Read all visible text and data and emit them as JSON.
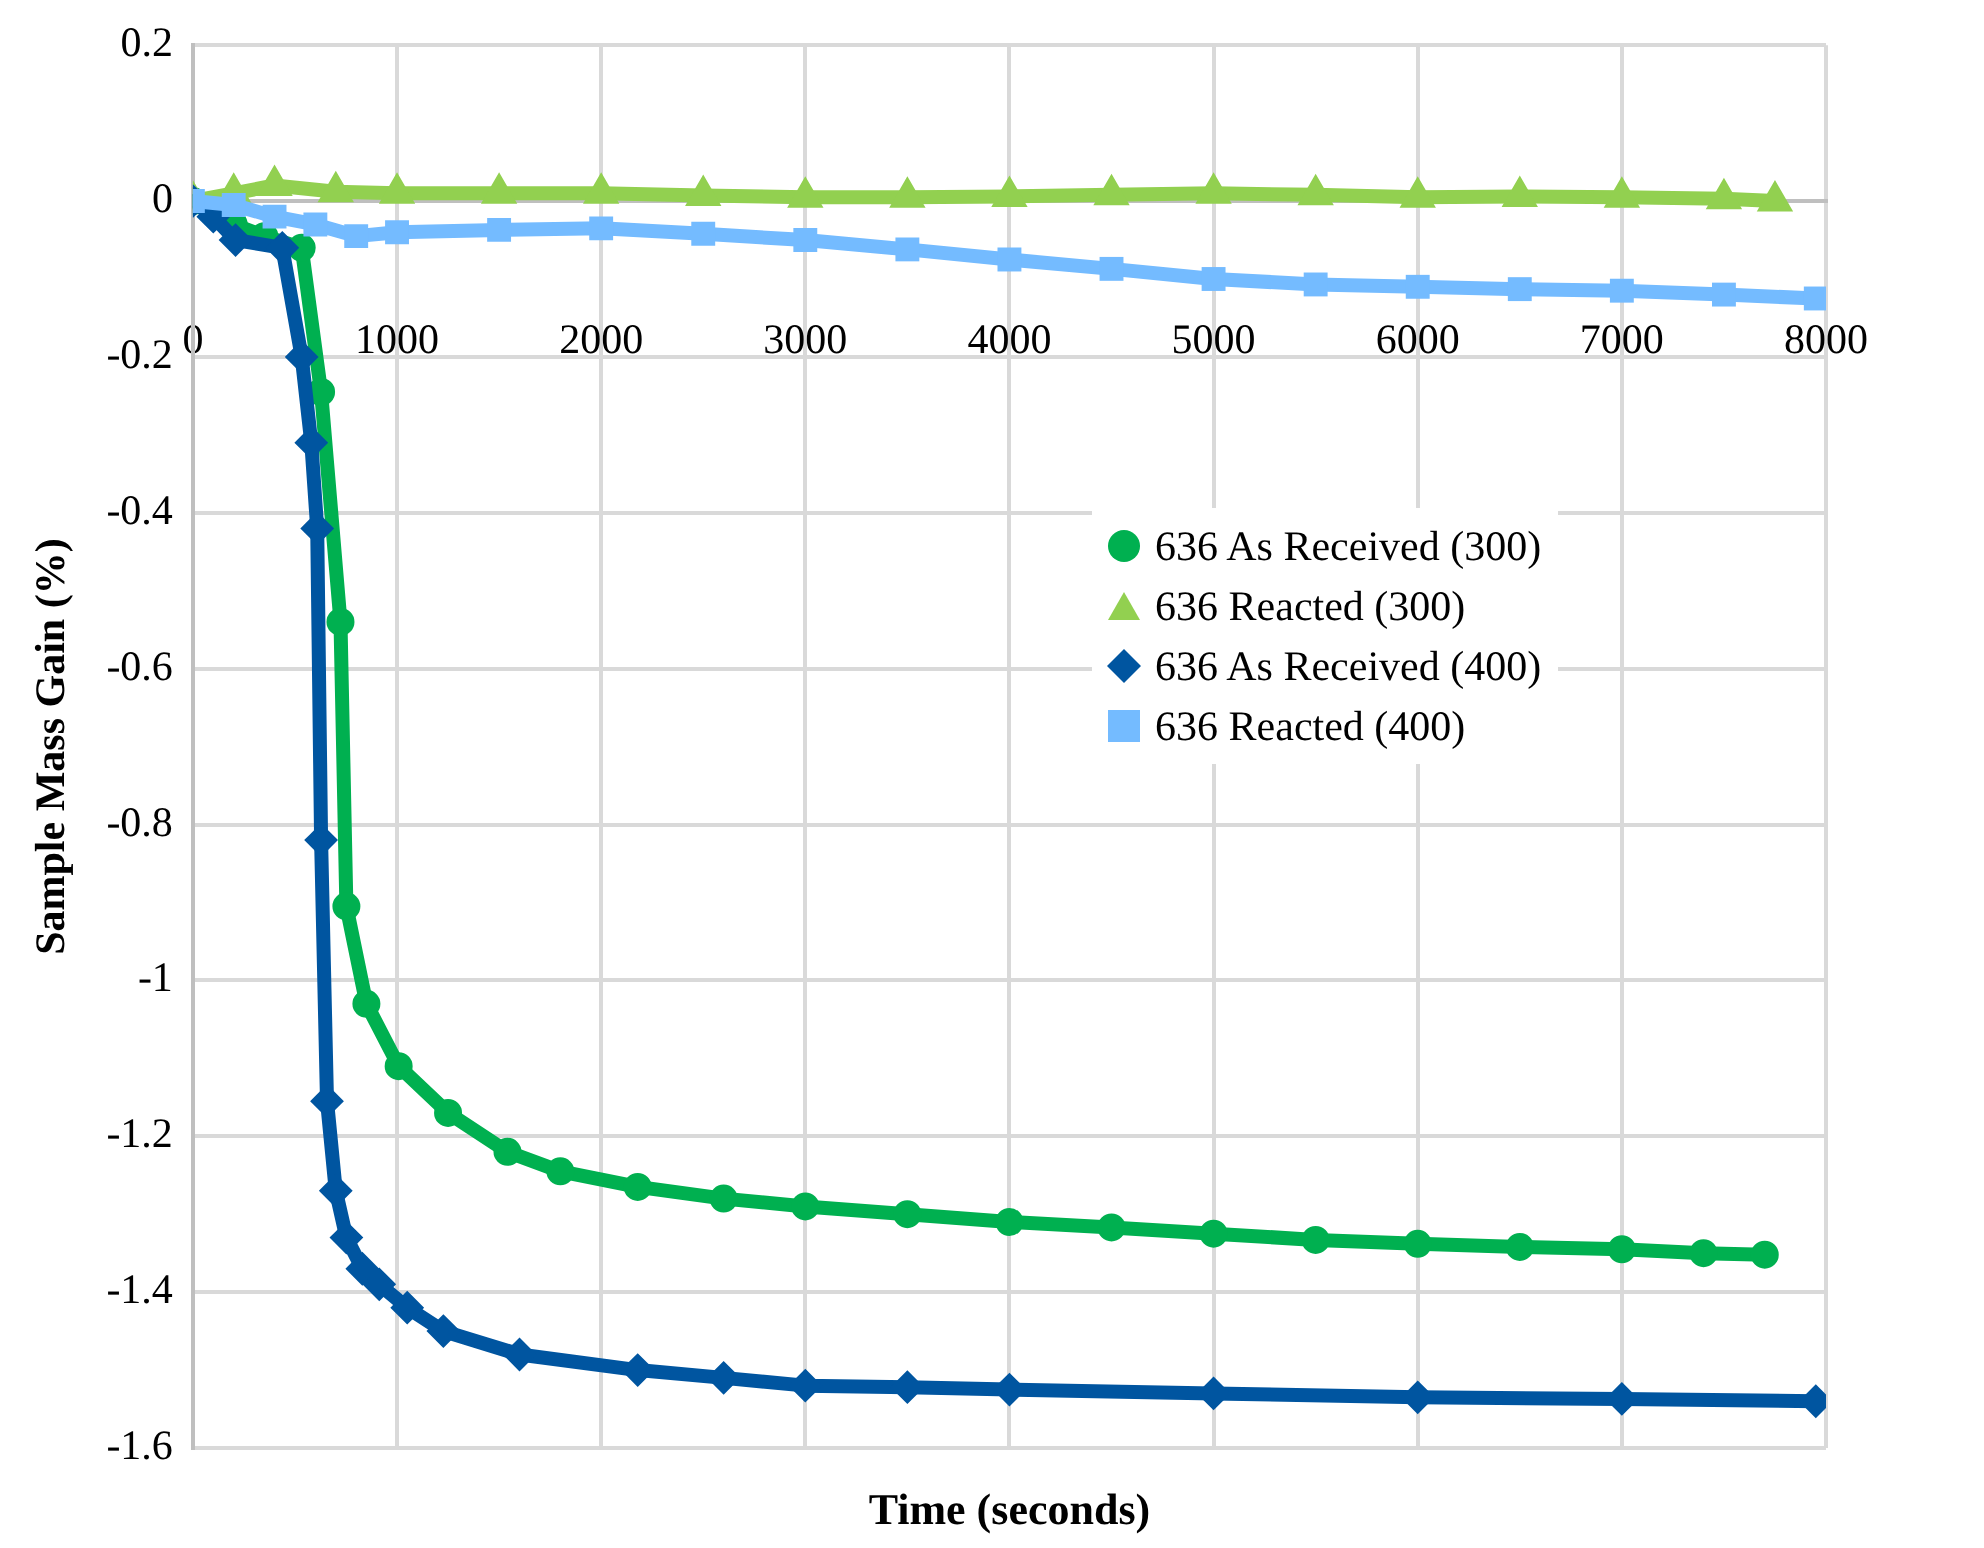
{
  "chart_data": {
    "type": "line",
    "xlabel": "Time (seconds)",
    "ylabel": "Sample Mass Gain (%)",
    "xlim": [
      0,
      8000
    ],
    "xticks": [
      0,
      1000,
      2000,
      3000,
      4000,
      5000,
      6000,
      7000,
      8000
    ],
    "ylim": [
      -1.6,
      0.2
    ],
    "yticks": [
      -1.6,
      -1.4,
      -1.2,
      -1,
      -0.8,
      -0.6,
      -0.4,
      -0.2,
      0,
      0.2
    ],
    "grid": true,
    "legend": "right",
    "line_style": "solid",
    "series": [
      {
        "name": "636 As Received (300)",
        "color": "#00b050",
        "marker": "circle",
        "x": [
          0,
          200,
          350,
          533,
          628,
          723,
          752,
          850,
          1008,
          1250,
          1541,
          1800,
          2179,
          2600,
          3000,
          3500,
          4000,
          4500,
          5000,
          5500,
          6000,
          6500,
          7000,
          7400,
          7700
        ],
        "values": [
          0,
          -0.03,
          -0.045,
          -0.06,
          -0.245,
          -0.54,
          -0.905,
          -1.03,
          -1.11,
          -1.17,
          -1.22,
          -1.245,
          -1.265,
          -1.28,
          -1.29,
          -1.3,
          -1.31,
          -1.317,
          -1.325,
          -1.333,
          -1.338,
          -1.342,
          -1.345,
          -1.35,
          -1.352
        ]
      },
      {
        "name": "636 Reacted (300)",
        "color": "#92d050",
        "marker": "triangle",
        "x": [
          0,
          200,
          400,
          700,
          1000,
          1500,
          2000,
          2500,
          3000,
          3500,
          4000,
          4500,
          5000,
          5500,
          6000,
          6500,
          7000,
          7500,
          7750
        ],
        "values": [
          0,
          0.01,
          0.02,
          0.012,
          0.01,
          0.01,
          0.01,
          0.007,
          0.005,
          0.005,
          0.006,
          0.008,
          0.01,
          0.008,
          0.005,
          0.006,
          0.005,
          0.003,
          0
        ]
      },
      {
        "name": "636 As Received (400)",
        "color": "#0055a0",
        "marker": "diamond",
        "x": [
          0,
          100,
          209,
          438,
          533,
          580,
          609,
          628,
          657,
          700,
          752,
          830,
          913,
          1050,
          1227,
          1600,
          2179,
          2600,
          3000,
          3500,
          4000,
          5000,
          6000,
          7000,
          7950
        ],
        "values": [
          0,
          -0.02,
          -0.05,
          -0.06,
          -0.2,
          -0.31,
          -0.42,
          -0.82,
          -1.155,
          -1.27,
          -1.33,
          -1.37,
          -1.39,
          -1.42,
          -1.45,
          -1.48,
          -1.5,
          -1.51,
          -1.52,
          -1.522,
          -1.525,
          -1.53,
          -1.535,
          -1.537,
          -1.54
        ]
      },
      {
        "name": "636 Reacted (400)",
        "color": "#74bbff",
        "marker": "square",
        "x": [
          0,
          200,
          400,
          600,
          800,
          1000,
          1500,
          2000,
          2500,
          3000,
          3500,
          4000,
          4500,
          5000,
          5500,
          6000,
          6500,
          7000,
          7500,
          7950
        ],
        "values": [
          0,
          -0.005,
          -0.02,
          -0.03,
          -0.045,
          -0.04,
          -0.037,
          -0.035,
          -0.042,
          -0.05,
          -0.062,
          -0.075,
          -0.087,
          -0.1,
          -0.107,
          -0.11,
          -0.113,
          -0.115,
          -0.12,
          -0.125
        ]
      }
    ]
  }
}
